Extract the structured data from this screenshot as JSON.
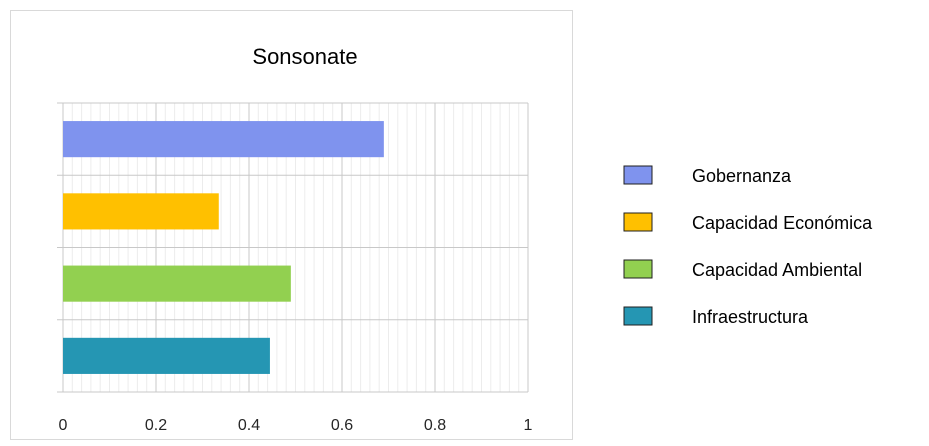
{
  "chart_data": {
    "type": "bar",
    "orientation": "horizontal",
    "title": "Sonsonate",
    "categories": [
      "Gobernanza",
      "Capacidad Económica",
      "Capacidad Ambiental",
      "Infraestructura"
    ],
    "values": [
      0.69,
      0.335,
      0.49,
      0.445
    ],
    "colors": [
      "#7f93ee",
      "#ffc000",
      "#92d050",
      "#2596b3"
    ],
    "xlim": [
      0,
      1
    ],
    "x_ticks": [
      "0",
      "0.2",
      "0.4",
      "0.6",
      "0.8",
      "1"
    ],
    "x_tick_values": [
      0,
      0.2,
      0.4,
      0.6,
      0.8,
      1
    ],
    "grid": true,
    "legend_placement": "right"
  }
}
